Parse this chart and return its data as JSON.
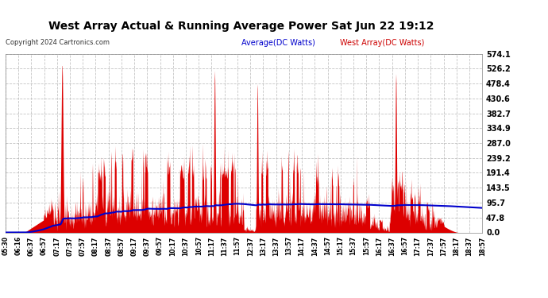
{
  "title": "West Array Actual & Running Average Power Sat Jun 22 19:12",
  "copyright": "Copyright 2024 Cartronics.com",
  "legend_avg": "Average(DC Watts)",
  "legend_west": "West Array(DC Watts)",
  "avg_color": "#0000cc",
  "west_color": "#cc0000",
  "fill_color": "#dd0000",
  "bg_color": "#ffffff",
  "grid_color": "#aaaaaa",
  "title_color": "#000000",
  "copyright_color": "#333333",
  "ymin": 0.0,
  "ymax": 574.1,
  "yticks": [
    0.0,
    47.8,
    95.7,
    143.5,
    191.4,
    239.2,
    287.0,
    334.9,
    382.7,
    430.6,
    478.4,
    526.2,
    574.1
  ],
  "xtick_labels": [
    "05:30",
    "06:16",
    "06:37",
    "06:57",
    "07:17",
    "07:37",
    "07:57",
    "08:17",
    "08:37",
    "08:57",
    "09:17",
    "09:37",
    "09:57",
    "10:17",
    "10:37",
    "10:57",
    "11:17",
    "11:37",
    "11:57",
    "12:37",
    "13:17",
    "13:37",
    "13:57",
    "14:17",
    "14:37",
    "14:57",
    "15:17",
    "15:37",
    "15:57",
    "16:17",
    "16:37",
    "16:57",
    "17:17",
    "17:37",
    "17:57",
    "18:17",
    "18:37",
    "18:57"
  ]
}
